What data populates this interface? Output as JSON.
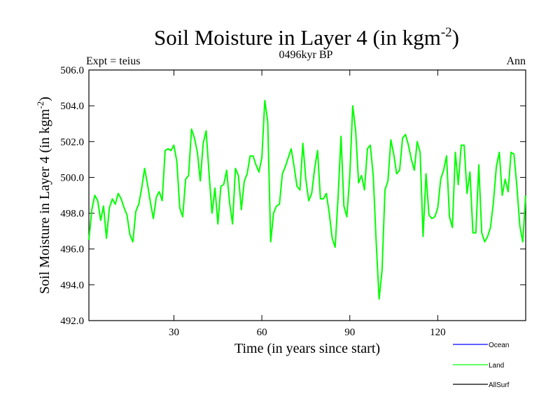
{
  "chart_data": {
    "type": "line",
    "title": "Soil Moisture in Layer 4 (in kgm",
    "title_sup": "-2",
    "title_close": ")",
    "subtitle": "0496kyr BP",
    "left_label": "Expt = teius",
    "right_label": "Ann",
    "xlabel": "Time (in years since start)",
    "ylabel": "Soil Moisture in Layer 4 (in kgm",
    "ylabel_sup": "-2",
    "ylabel_close": ")",
    "xlim": [
      1,
      150
    ],
    "ylim": [
      492,
      506
    ],
    "x_ticks": [
      30,
      60,
      90,
      120
    ],
    "y_ticks": [
      "492.0",
      "494.0",
      "496.0",
      "498.0",
      "500.0",
      "502.0",
      "504.0",
      "506.0"
    ],
    "legend": [
      {
        "name": "Ocean",
        "color": "#0000ff"
      },
      {
        "name": "Land",
        "color": "#00ff00"
      },
      {
        "name": "AllSurf",
        "color": "#000000"
      }
    ],
    "series": [
      {
        "name": "Land",
        "color": "#00ff00",
        "x_start": 1,
        "values": [
          496.5,
          498.2,
          499.0,
          498.7,
          497.6,
          498.4,
          496.6,
          498.3,
          498.8,
          498.5,
          499.1,
          498.8,
          498.3,
          497.9,
          496.8,
          496.4,
          498.1,
          498.5,
          499.4,
          500.5,
          499.6,
          498.6,
          497.7,
          498.9,
          499.2,
          498.7,
          501.5,
          501.6,
          501.5,
          501.8,
          500.9,
          498.3,
          497.8,
          499.9,
          500.1,
          502.7,
          502.2,
          501.4,
          499.8,
          501.9,
          502.6,
          500.2,
          498.0,
          499.4,
          497.4,
          499.5,
          499.6,
          500.4,
          498.6,
          497.4,
          500.5,
          500.1,
          498.2,
          499.8,
          500.2,
          501.2,
          501.2,
          500.7,
          500.3,
          501.1,
          504.3,
          503.1,
          496.4,
          498.0,
          498.4,
          498.5,
          500.2,
          500.6,
          501.1,
          501.6,
          500.6,
          499.5,
          499.3,
          501.9,
          499.9,
          498.7,
          499.1,
          500.5,
          501.5,
          498.8,
          498.8,
          499.1,
          498.0,
          496.6,
          496.1,
          498.9,
          502.3,
          498.4,
          497.8,
          500.1,
          504.0,
          502.6,
          499.7,
          500.1,
          499.3,
          501.6,
          501.8,
          500.1,
          496.4,
          493.2,
          494.8,
          499.3,
          499.8,
          502.1,
          501.3,
          500.2,
          500.4,
          502.2,
          502.4,
          501.8,
          501.0,
          500.4,
          502.0,
          501.4,
          496.7,
          500.2,
          497.9,
          497.7,
          497.8,
          498.3,
          499.9,
          500.4,
          501.2,
          497.8,
          497.2,
          501.4,
          499.6,
          501.8,
          501.8,
          499.1,
          500.3,
          496.9,
          496.9,
          500.7,
          496.9,
          496.4,
          496.7,
          497.2,
          498.6,
          500.6,
          501.4,
          499.0,
          499.9,
          499.2,
          501.4,
          501.3,
          499.5,
          497.3,
          496.4,
          499.0
        ]
      }
    ]
  }
}
